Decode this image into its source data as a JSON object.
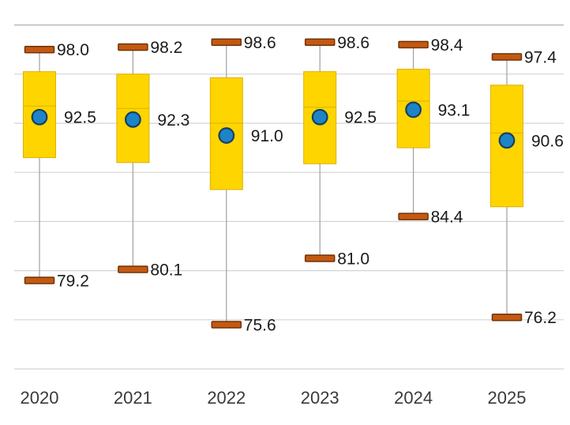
{
  "chart_data": {
    "type": "box",
    "title": "",
    "xlabel": "",
    "ylabel": "",
    "categories": [
      "2020",
      "2021",
      "2022",
      "2023",
      "2024",
      "2025"
    ],
    "series": [
      {
        "category": "2020",
        "max": 98.0,
        "q3": 96.2,
        "median": 93.4,
        "mean": 92.5,
        "q1": 89.2,
        "min": 79.2,
        "labels": {
          "max": "98.0",
          "mean": "92.5",
          "min": "79.2"
        }
      },
      {
        "category": "2021",
        "max": 98.2,
        "q3": 96.0,
        "median": 93.2,
        "mean": 92.3,
        "q1": 88.8,
        "min": 80.1,
        "labels": {
          "max": "98.2",
          "mean": "92.3",
          "min": "80.1"
        }
      },
      {
        "category": "2022",
        "max": 98.6,
        "q3": 95.7,
        "median": 92.0,
        "mean": 91.0,
        "q1": 86.6,
        "min": 75.6,
        "labels": {
          "max": "98.6",
          "mean": "91.0",
          "min": "75.6"
        }
      },
      {
        "category": "2023",
        "max": 98.6,
        "q3": 96.2,
        "median": 93.3,
        "mean": 92.5,
        "q1": 88.7,
        "min": 81.0,
        "labels": {
          "max": "98.6",
          "mean": "92.5",
          "min": "81.0"
        }
      },
      {
        "category": "2024",
        "max": 98.4,
        "q3": 96.4,
        "median": 93.8,
        "mean": 93.1,
        "q1": 90.0,
        "min": 84.4,
        "labels": {
          "max": "98.4",
          "mean": "93.1",
          "min": "84.4"
        }
      },
      {
        "category": "2025",
        "max": 97.4,
        "q3": 95.1,
        "median": 91.2,
        "mean": 90.6,
        "q1": 85.2,
        "min": 76.2,
        "labels": {
          "max": "97.4",
          "mean": "90.6",
          "min": "76.2"
        }
      }
    ],
    "ylim": [
      72,
      100
    ],
    "gridlines": {
      "values": [
        100,
        96,
        92,
        88,
        84,
        80,
        76
      ],
      "interval": 4,
      "visible": true,
      "y_tick_labels_visible": false
    },
    "baseline_value": 72,
    "legend": {
      "visible": false
    },
    "marker_meaning": {
      "box": "interquartile range",
      "dot": "mean",
      "caps": "max and min",
      "line_in_box": "median"
    }
  },
  "colors": {
    "background": "#ffffff",
    "box_fill": "#FFD500",
    "box_border": "#DFAF00",
    "median_line": "#C9A200",
    "cap_fill": "#C45911",
    "cap_border": "#6F3309",
    "dot_fill": "#1F83C8",
    "dot_border": "#17405F",
    "whisker": "#A0A0A0",
    "gridline": "#D4D4D4",
    "gridline_top": "#C5C5C5",
    "axis_line": "#E4E4E4",
    "value_label_text": "#1A1A1A",
    "year_label_text": "#3A3A3A"
  }
}
